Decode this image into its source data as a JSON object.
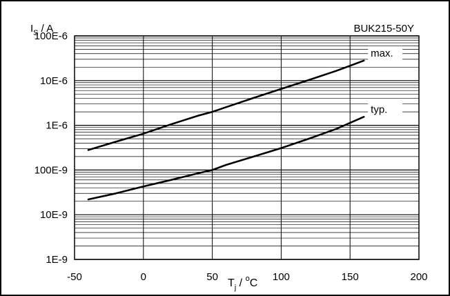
{
  "chart_data": {
    "type": "line",
    "title": "BUK215-50Y",
    "xlabel": "T",
    "xlabel_sub": "j",
    "xlabel_sep": " / ",
    "xlabel_sup": "o",
    "xlabel_unit": "C",
    "ylabel": "I",
    "ylabel_sub": "S",
    "ylabel_unit": " / A",
    "x_scale": "linear",
    "y_scale": "log",
    "xlim": [
      -50,
      200
    ],
    "ylim": [
      1e-09,
      0.0001
    ],
    "x_ticks": [
      -50,
      0,
      50,
      100,
      150,
      200
    ],
    "x_tick_labels": [
      "-50",
      "0",
      "50",
      "100",
      "150",
      "200"
    ],
    "y_ticks": [
      1e-09,
      1e-08,
      1e-07,
      1e-06,
      1e-05,
      0.0001
    ],
    "y_tick_labels": [
      "1E-9",
      "10E-9",
      "100E-9",
      "1E-6",
      "10E-6",
      "100E-6"
    ],
    "grid": true,
    "series": [
      {
        "name": "max.",
        "x": [
          -40,
          -20,
          0,
          20,
          40,
          50,
          60,
          80,
          100,
          120,
          140,
          160
        ],
        "y": [
          2.8e-07,
          4.3e-07,
          6.5e-07,
          1.05e-06,
          1.65e-06,
          2e-06,
          2.55e-06,
          4.1e-06,
          6.5e-06,
          1.03e-05,
          1.65e-05,
          2.8e-05
        ]
      },
      {
        "name": "typ.",
        "x": [
          -40,
          -20,
          0,
          20,
          40,
          50,
          60,
          80,
          100,
          120,
          140,
          160
        ],
        "y": [
          2.2e-08,
          3e-08,
          4.3e-08,
          6e-08,
          8.5e-08,
          1e-07,
          1.3e-07,
          2e-07,
          3.1e-07,
          5e-07,
          8.3e-07,
          1.55e-06
        ]
      }
    ]
  }
}
